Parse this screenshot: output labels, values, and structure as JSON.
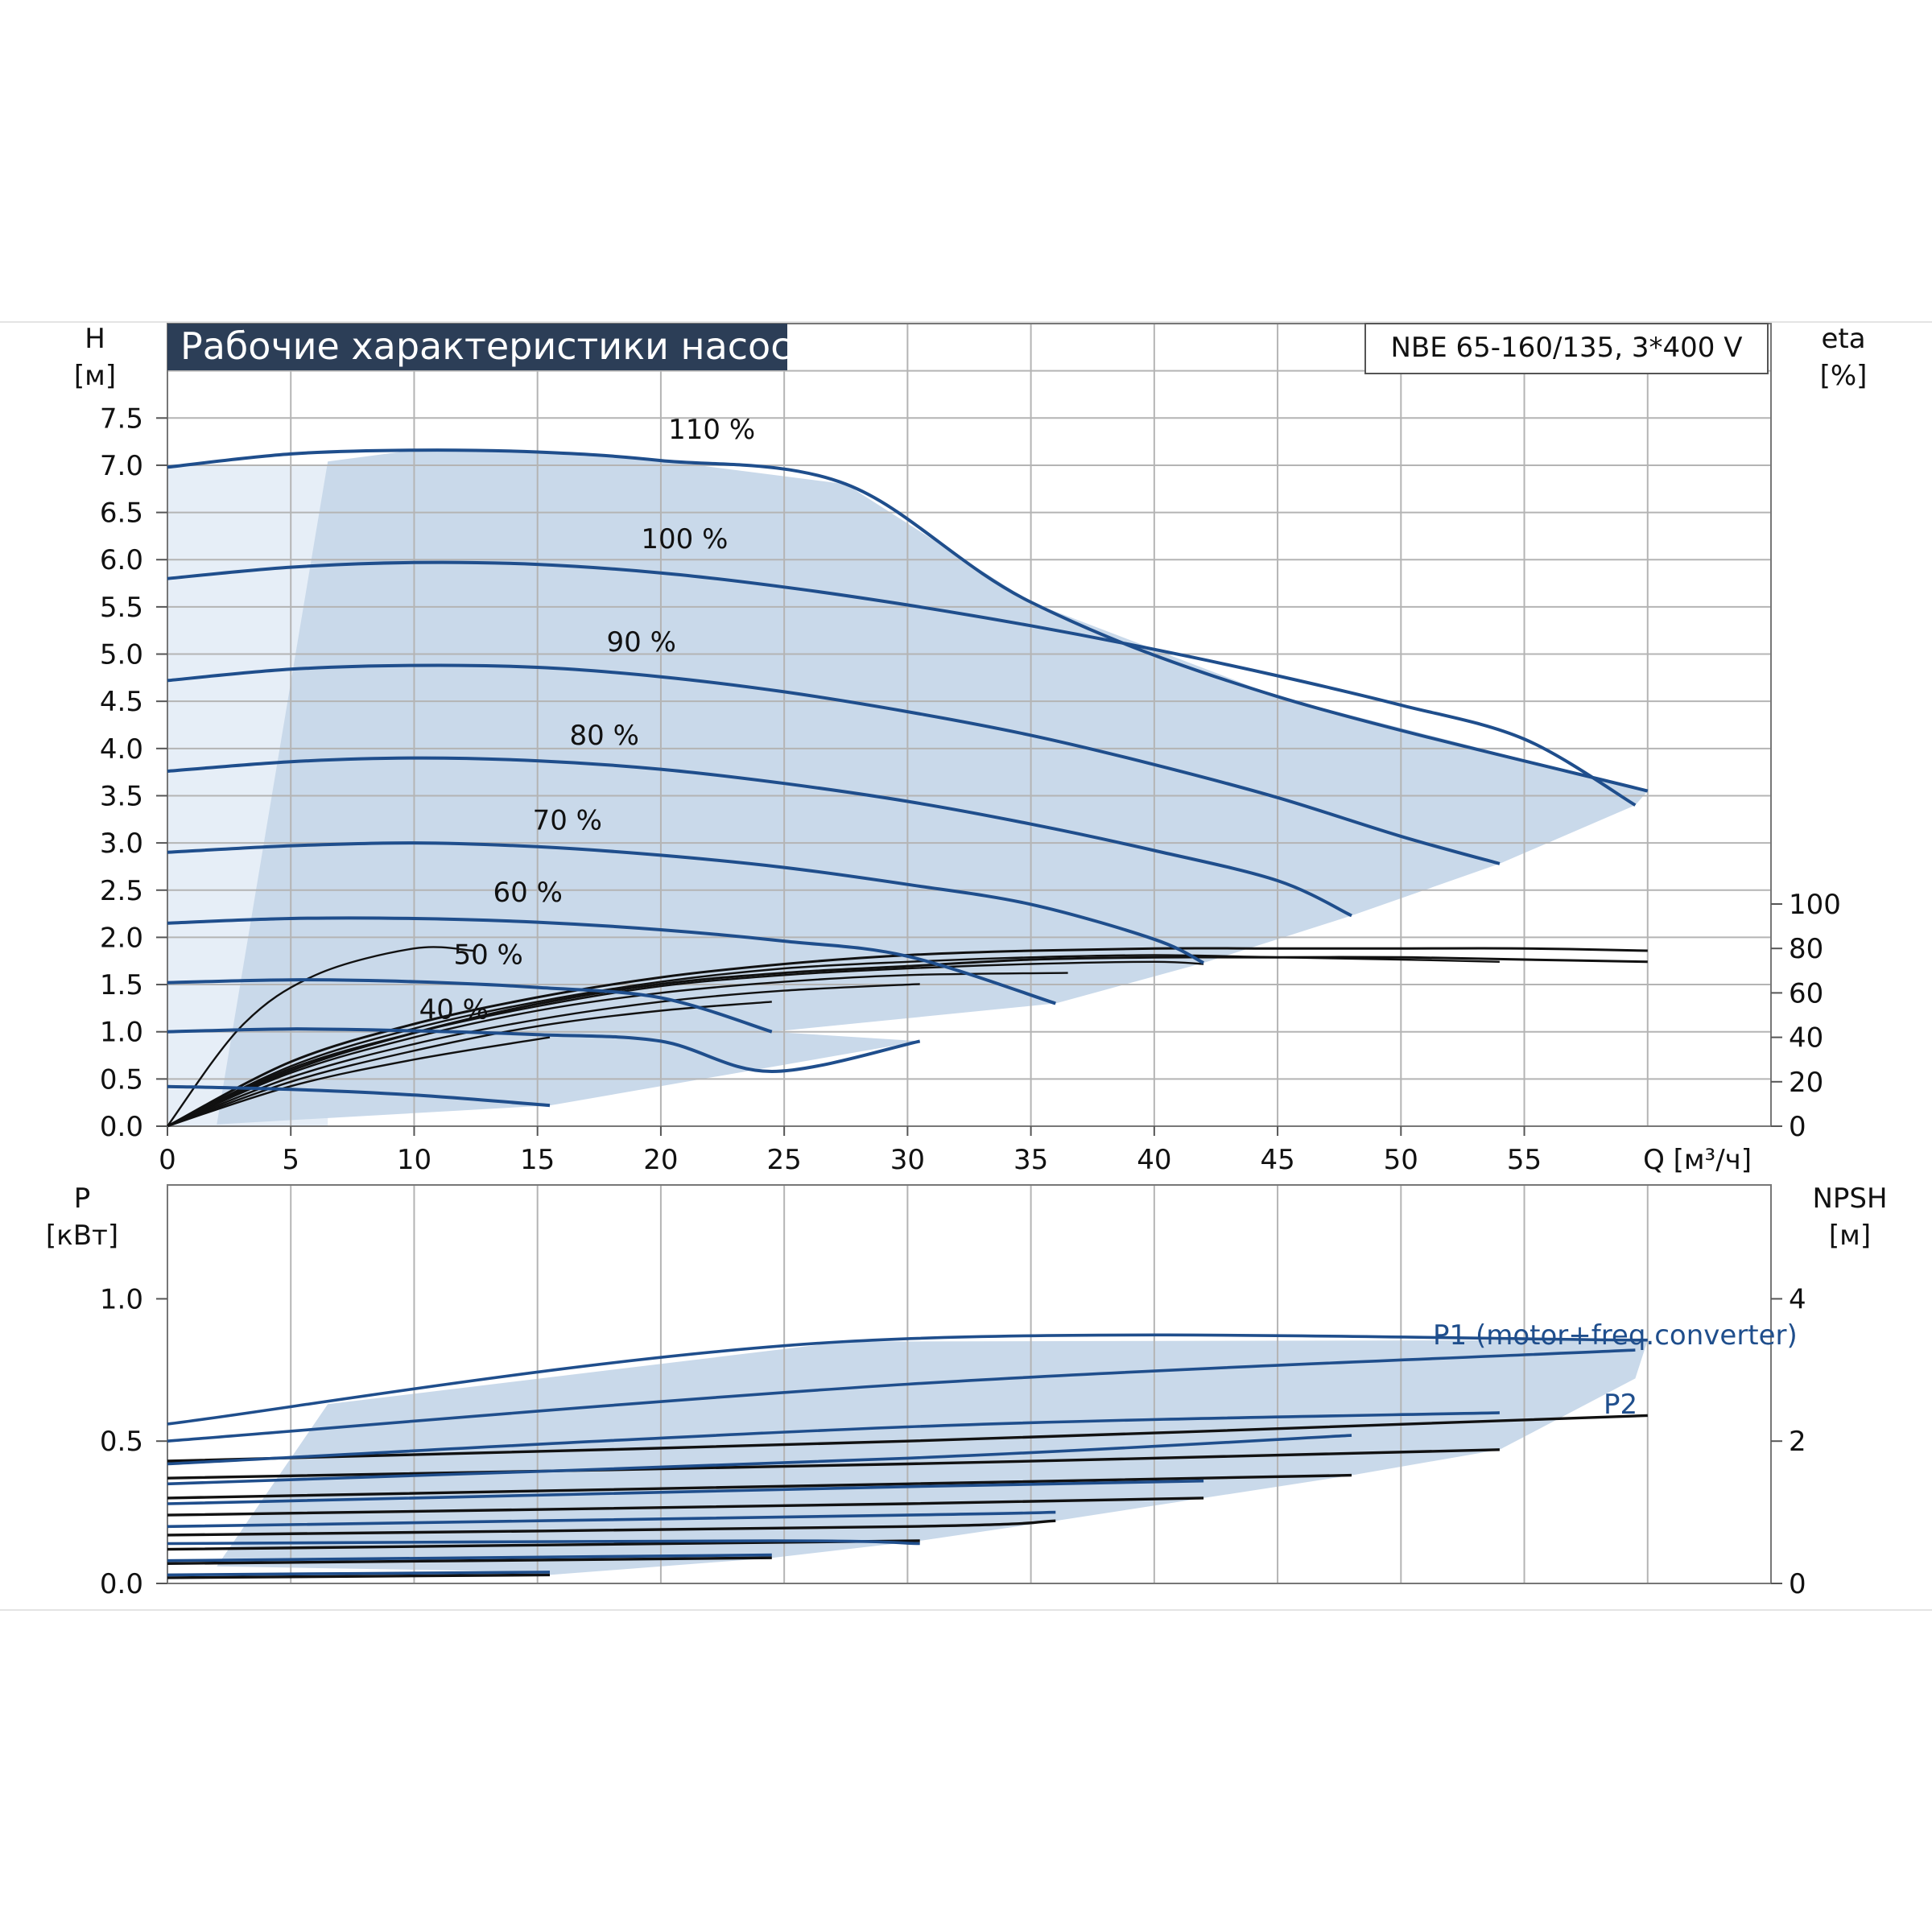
{
  "chart_data": [
    {
      "type": "line",
      "title": "Рабочие характеристики насоса",
      "model": "NBE 65-160/135, 3*400 V",
      "ylabel": [
        "H",
        "[м]"
      ],
      "y2label": [
        "eta",
        "[%]"
      ],
      "xlabel": "Q [м³/ч]",
      "xlim": [
        0,
        65
      ],
      "ylim": [
        0,
        8.5
      ],
      "y2lim": [
        0,
        100
      ],
      "x_ticks": [
        0,
        5,
        10,
        15,
        20,
        25,
        30,
        35,
        40,
        45,
        50,
        55
      ],
      "y_ticks": [
        "0.0",
        "0.5",
        "1.0",
        "1.5",
        "2.0",
        "2.5",
        "3.0",
        "3.5",
        "4.0",
        "4.5",
        "5.0",
        "5.5",
        "6.0",
        "6.5",
        "7.0",
        "7.5"
      ],
      "y2_ticks": [
        0,
        20,
        40,
        60,
        80,
        100
      ],
      "grid": true,
      "series": [
        {
          "name": "110 %",
          "label_at": [
            20.3,
            7.28
          ],
          "x": [
            0,
            5,
            10,
            15,
            20,
            27.5,
            35,
            45,
            60
          ],
          "y": [
            6.98,
            7.12,
            7.16,
            7.14,
            7.05,
            6.8,
            5.55,
            4.55,
            3.55
          ]
        },
        {
          "name": "100 %",
          "label_at": [
            19.2,
            6.12
          ],
          "x": [
            0,
            5,
            10,
            15,
            20,
            25,
            30,
            35,
            40,
            45,
            50,
            55,
            59.5
          ],
          "y": [
            5.8,
            5.92,
            5.97,
            5.95,
            5.86,
            5.71,
            5.52,
            5.3,
            5.05,
            4.77,
            4.46,
            4.1,
            3.4
          ]
        },
        {
          "name": "90 %",
          "label_at": [
            17.8,
            5.03
          ],
          "x": [
            0,
            5,
            10,
            15,
            20,
            25,
            30,
            35,
            40,
            45,
            50,
            54
          ],
          "y": [
            4.72,
            4.84,
            4.88,
            4.86,
            4.76,
            4.6,
            4.39,
            4.14,
            3.83,
            3.48,
            3.07,
            2.78
          ]
        },
        {
          "name": "80 %",
          "label_at": [
            16.3,
            4.04
          ],
          "x": [
            0,
            5,
            10,
            15,
            20,
            25,
            30,
            35,
            40,
            45,
            48
          ],
          "y": [
            3.76,
            3.86,
            3.9,
            3.87,
            3.78,
            3.63,
            3.44,
            3.2,
            2.92,
            2.6,
            2.23
          ]
        },
        {
          "name": "70 %",
          "label_at": [
            14.8,
            3.14
          ],
          "x": [
            0,
            5,
            10,
            15,
            20,
            25,
            30,
            35,
            40,
            42
          ],
          "y": [
            2.9,
            2.97,
            3.0,
            2.96,
            2.87,
            2.74,
            2.56,
            2.35,
            1.98,
            1.73
          ]
        },
        {
          "name": "60 %",
          "label_at": [
            13.2,
            2.38
          ],
          "x": [
            0,
            5,
            10,
            15,
            20,
            25,
            30,
            36
          ],
          "y": [
            2.15,
            2.2,
            2.2,
            2.16,
            2.08,
            1.96,
            1.8,
            1.3
          ]
        },
        {
          "name": "50 %",
          "label_at": [
            11.6,
            1.72
          ],
          "x": [
            0,
            5,
            10,
            15,
            20,
            24.5
          ],
          "y": [
            1.52,
            1.55,
            1.53,
            1.47,
            1.36,
            1.0
          ]
        },
        {
          "name": "40 %",
          "label_at": [
            10.2,
            1.14
          ],
          "x": [
            0,
            5,
            10,
            15,
            20,
            24.5,
            30.5
          ],
          "y": [
            1.0,
            1.03,
            1.01,
            0.97,
            0.9,
            0.58,
            0.9
          ]
        },
        {
          "name": "",
          "x": [
            0,
            5,
            10,
            15.5
          ],
          "y": [
            0.42,
            0.39,
            0.33,
            0.22
          ]
        }
      ],
      "efficiency_series": [
        {
          "x": [
            0,
            5,
            10,
            15,
            20,
            25,
            30,
            35,
            40,
            45,
            50,
            55,
            60
          ],
          "y": [
            0,
            25,
            42,
            55,
            64,
            69,
            72,
            75,
            76,
            76,
            76,
            75,
            74
          ]
        },
        {
          "x": [
            0,
            5,
            10,
            15,
            20,
            25,
            30,
            35,
            40,
            45,
            50,
            55,
            60
          ],
          "y": [
            0,
            29,
            46,
            58,
            67,
            73,
            77,
            79,
            80,
            80,
            80,
            80,
            79
          ]
        },
        {
          "x": [
            0,
            5,
            10,
            15,
            20,
            25,
            30,
            35,
            40,
            45,
            50,
            54
          ],
          "y": [
            0,
            27,
            44,
            56,
            65,
            71,
            74,
            76,
            77,
            76,
            75,
            74
          ]
        },
        {
          "x": [
            0,
            5,
            10,
            15,
            20,
            25,
            30,
            35,
            40,
            42
          ],
          "y": [
            0,
            26,
            42,
            54,
            63,
            68,
            71,
            73,
            74,
            73
          ]
        },
        {
          "x": [
            0,
            5,
            10,
            15,
            20,
            25,
            30,
            36.5
          ],
          "y": [
            0,
            24,
            40,
            52,
            60,
            65,
            68,
            69
          ]
        },
        {
          "x": [
            0,
            5,
            10,
            15,
            20,
            25,
            30.5
          ],
          "y": [
            0,
            22,
            37,
            48,
            56,
            61,
            64
          ]
        },
        {
          "x": [
            0,
            5,
            10,
            15,
            20,
            24.5
          ],
          "y": [
            0,
            20,
            34,
            45,
            52,
            56
          ]
        },
        {
          "x": [
            0,
            5,
            10,
            15.5
          ],
          "y": [
            0,
            18,
            30,
            40
          ]
        },
        {
          "x": [
            0,
            3,
            6,
            10,
            12.4
          ],
          "y": [
            0,
            45,
            68,
            80,
            79
          ]
        }
      ]
    },
    {
      "type": "line",
      "ylabel": [
        "P",
        "[кВт]"
      ],
      "y2label": [
        "NPSH",
        "[м]"
      ],
      "xlim": [
        0,
        65
      ],
      "ylim": [
        0,
        1.4
      ],
      "y2lim": [
        0,
        5.6
      ],
      "y_ticks": [
        "0.0",
        "0.5",
        "1.0"
      ],
      "y2_ticks": [
        0,
        2,
        4
      ],
      "grid": true,
      "labels": {
        "p1": "P1 (motor+freq.converter)",
        "p2": "P2"
      },
      "p1_series": [
        {
          "x": [
            0,
            27.5,
            60
          ],
          "y": [
            0.56,
            0.85,
            0.855
          ]
        },
        {
          "x": [
            0,
            30,
            59.5
          ],
          "y": [
            0.5,
            0.7,
            0.82
          ]
        },
        {
          "x": [
            0,
            30,
            54
          ],
          "y": [
            0.42,
            0.55,
            0.6
          ]
        },
        {
          "x": [
            0,
            30,
            48
          ],
          "y": [
            0.35,
            0.44,
            0.52
          ]
        },
        {
          "x": [
            0,
            30,
            42
          ],
          "y": [
            0.28,
            0.34,
            0.36
          ]
        },
        {
          "x": [
            0,
            30,
            36
          ],
          "y": [
            0.2,
            0.24,
            0.25
          ]
        },
        {
          "x": [
            0,
            24.5,
            30.5
          ],
          "y": [
            0.14,
            0.15,
            0.14
          ]
        },
        {
          "x": [
            0,
            24.5
          ],
          "y": [
            0.08,
            0.1
          ]
        },
        {
          "x": [
            0,
            15.5
          ],
          "y": [
            0.03,
            0.04
          ]
        }
      ],
      "p2_series": [
        {
          "x": [
            0,
            30,
            60
          ],
          "y": [
            0.43,
            0.5,
            0.59
          ]
        },
        {
          "x": [
            0,
            30,
            54
          ],
          "y": [
            0.37,
            0.42,
            0.47
          ]
        },
        {
          "x": [
            0,
            30,
            48
          ],
          "y": [
            0.3,
            0.35,
            0.38
          ]
        },
        {
          "x": [
            0,
            30,
            42
          ],
          "y": [
            0.24,
            0.28,
            0.3
          ]
        },
        {
          "x": [
            0,
            30,
            36
          ],
          "y": [
            0.17,
            0.2,
            0.22
          ]
        },
        {
          "x": [
            0,
            30.5
          ],
          "y": [
            0.12,
            0.15
          ]
        },
        {
          "x": [
            0,
            24.5
          ],
          "y": [
            0.07,
            0.09
          ]
        },
        {
          "x": [
            0,
            15.5
          ],
          "y": [
            0.02,
            0.03
          ]
        }
      ]
    }
  ],
  "colors": {
    "curve": "#1f4e8c",
    "fill": "#c9d9ea",
    "fill_light": "#e6eef7",
    "grid": "#b4b4b4",
    "title_bg": "#2c3e57",
    "efficiency": "#111111"
  }
}
